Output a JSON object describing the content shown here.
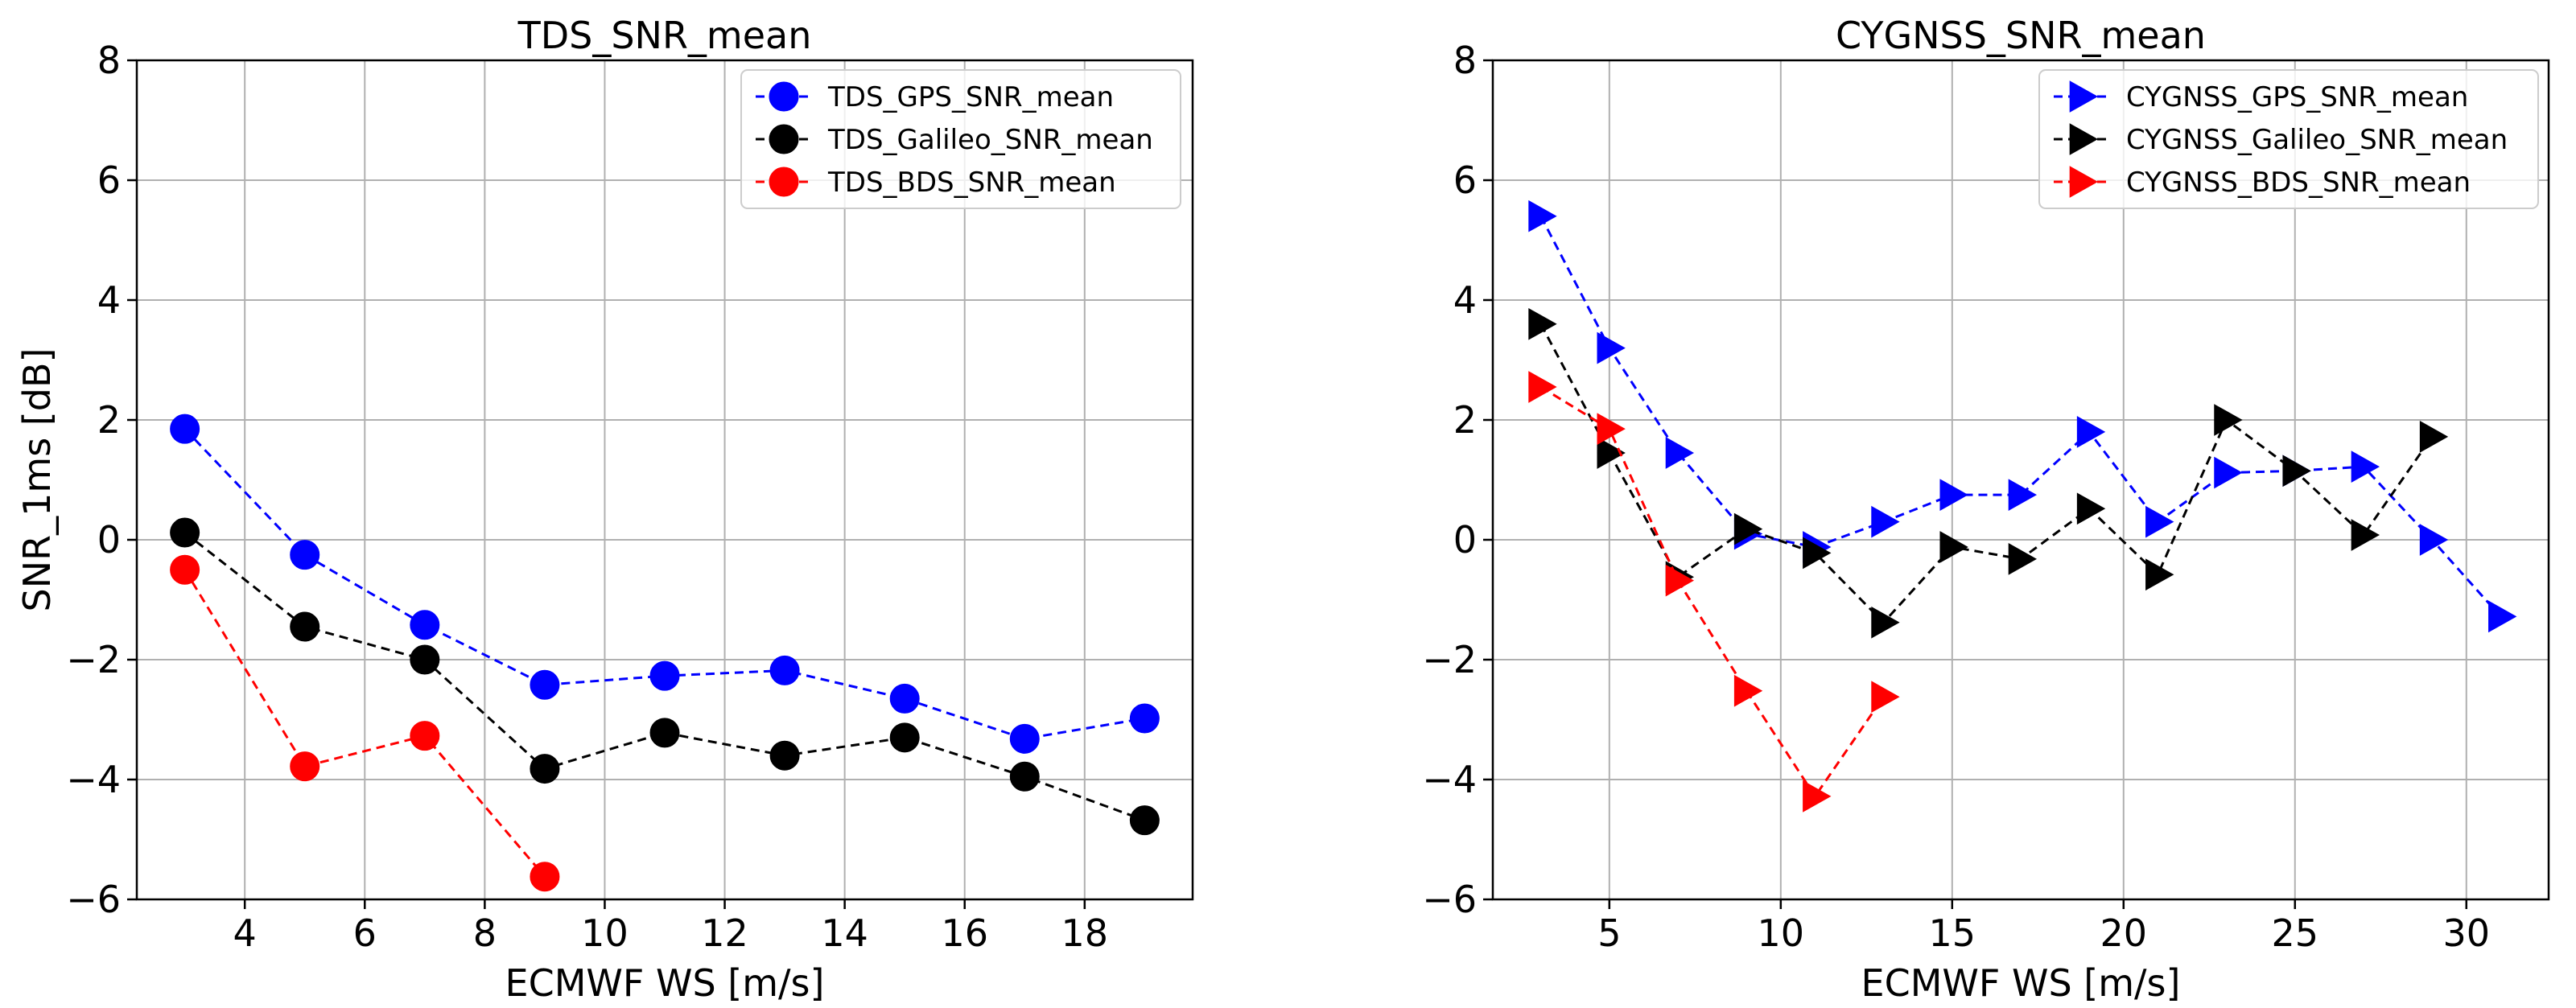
{
  "chart_data": [
    {
      "type": "line",
      "title": "TDS_SNR_mean",
      "xlabel": "ECMWF WS [m/s]",
      "ylabel": "SNR_1ms [dB]",
      "xlim": [
        2.2,
        19.8
      ],
      "ylim": [
        -6,
        8
      ],
      "xticks": [
        4,
        6,
        8,
        10,
        12,
        14,
        16,
        18
      ],
      "yticks": [
        -6,
        -4,
        -2,
        0,
        2,
        4,
        6,
        8
      ],
      "marker": "circle",
      "legend_position": "upper right",
      "grid": true,
      "series": [
        {
          "name": "TDS_GPS_SNR_mean",
          "color": "#0000ff",
          "x": [
            3,
            5,
            7,
            9,
            11,
            13,
            15,
            17,
            19
          ],
          "y": [
            1.85,
            -0.25,
            -1.42,
            -2.42,
            -2.27,
            -2.18,
            -2.65,
            -3.32,
            -2.98
          ]
        },
        {
          "name": "TDS_Galileo_SNR_mean",
          "color": "#000000",
          "x": [
            3,
            5,
            7,
            9,
            11,
            13,
            15,
            17,
            19
          ],
          "y": [
            0.12,
            -1.45,
            -2.0,
            -3.82,
            -3.22,
            -3.6,
            -3.3,
            -3.95,
            -4.68
          ]
        },
        {
          "name": "TDS_BDS_SNR_mean",
          "color": "#ff0000",
          "x": [
            3,
            5,
            7,
            9
          ],
          "y": [
            -0.5,
            -3.78,
            -3.27,
            -5.62
          ]
        }
      ]
    },
    {
      "type": "line",
      "title": "CYGNSS_SNR_mean",
      "xlabel": "ECMWF WS [m/s]",
      "ylabel": "",
      "xlim": [
        1.6,
        32.4
      ],
      "ylim": [
        -6,
        8
      ],
      "xticks": [
        5,
        10,
        15,
        20,
        25,
        30
      ],
      "yticks": [
        -6,
        -4,
        -2,
        0,
        2,
        4,
        6,
        8
      ],
      "marker": "triangle-right",
      "legend_position": "upper right",
      "grid": true,
      "series": [
        {
          "name": "CYGNSS_GPS_SNR_mean",
          "color": "#0000ff",
          "x": [
            3,
            5,
            7,
            9,
            11,
            13,
            15,
            17,
            19,
            21,
            23,
            25,
            27,
            29,
            31
          ],
          "y": [
            5.4,
            3.2,
            1.45,
            0.1,
            -0.12,
            0.3,
            0.75,
            0.75,
            1.8,
            0.3,
            1.12,
            1.15,
            1.22,
            0.0,
            -1.28
          ]
        },
        {
          "name": "CYGNSS_Galileo_SNR_mean",
          "color": "#000000",
          "x": [
            3,
            5,
            7,
            9,
            11,
            13,
            15,
            17,
            19,
            21,
            23,
            25,
            27,
            29
          ],
          "y": [
            3.6,
            1.45,
            -0.62,
            0.18,
            -0.22,
            -1.38,
            -0.12,
            -0.32,
            0.52,
            -0.58,
            2.0,
            1.15,
            0.08,
            1.72
          ]
        },
        {
          "name": "CYGNSS_BDS_SNR_mean",
          "color": "#ff0000",
          "x": [
            3,
            5,
            7,
            9,
            11,
            13
          ],
          "y": [
            2.55,
            1.85,
            -0.68,
            -2.52,
            -4.28,
            -2.62
          ]
        }
      ]
    }
  ]
}
